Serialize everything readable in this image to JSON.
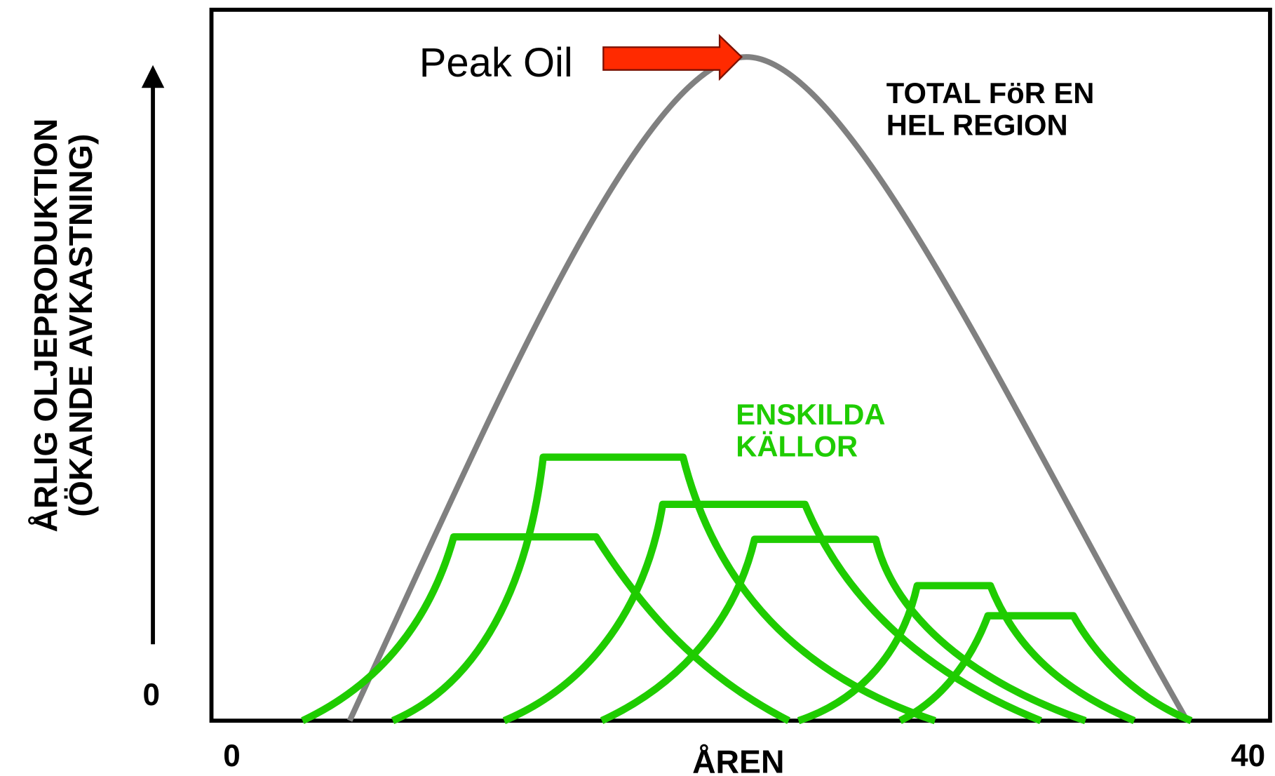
{
  "peak_label": "Peak Oil",
  "total_label": [
    "TOTAL FöR EN",
    "HEL REGION"
  ],
  "wells_label": [
    "ENSKILDA",
    "KÄLLOR"
  ],
  "y_axis_label": [
    "ÅRLIG OLJEPRODUKTION",
    "(ÖKANDE AVKASTNING)"
  ],
  "y_origin_label": "0",
  "x_axis_label": "ÅREN",
  "x_start_label": "0",
  "x_end_label": "40"
}
